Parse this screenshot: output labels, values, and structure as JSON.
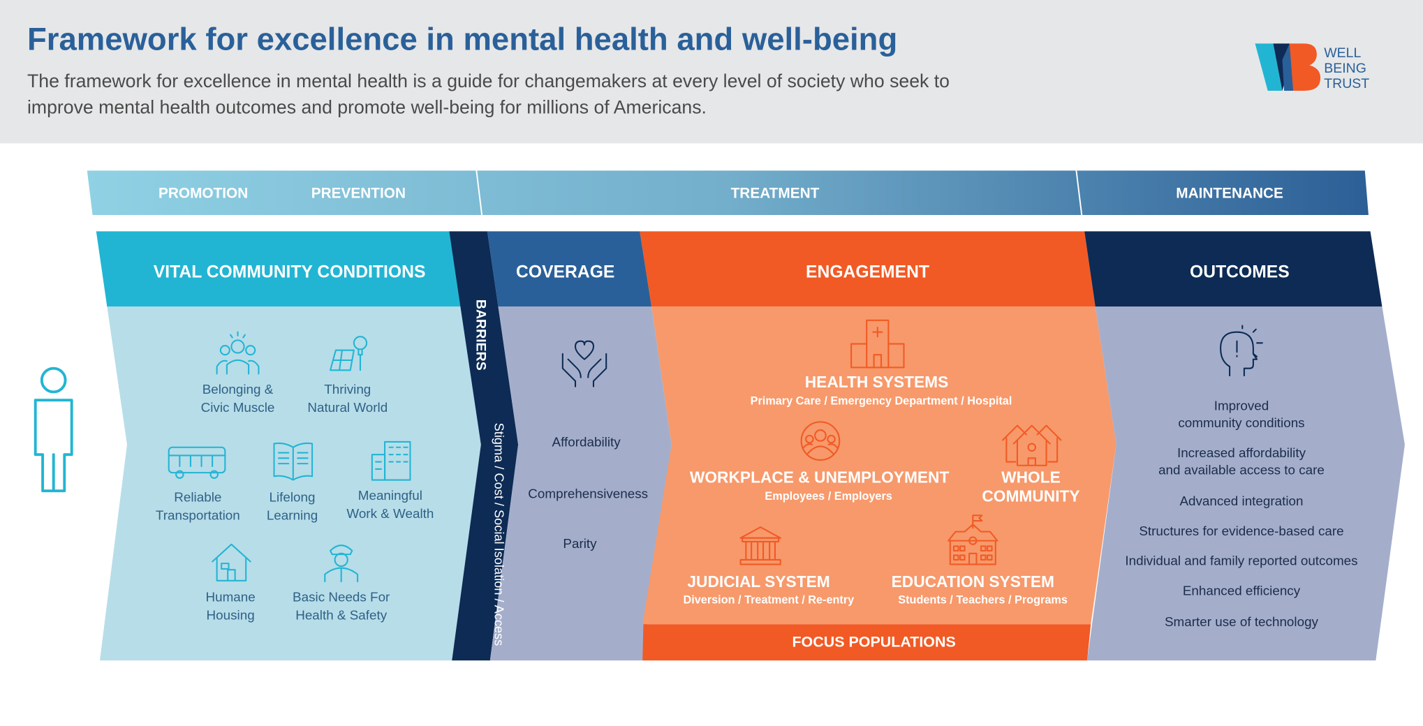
{
  "header": {
    "title": "Framework for excellence in mental health and well-being",
    "subtitle": "The framework for excellence in mental health is a guide for changemakers at every level of society who seek to improve mental health outcomes and promote well-being for millions of Americans.",
    "logo_text": [
      "WELL",
      "BEING",
      "TRUST"
    ]
  },
  "phases": [
    "PROMOTION",
    "PREVENTION",
    "TREATMENT",
    "MAINTENANCE"
  ],
  "vital": {
    "title": "VITAL COMMUNITY CONDITIONS",
    "items": [
      {
        "l1": "Belonging &",
        "l2": "Civic Muscle",
        "icon": "group-icon"
      },
      {
        "l1": "Thriving",
        "l2": "Natural World",
        "icon": "solar-bulb-icon"
      },
      {
        "l1": "Reliable",
        "l2": "Transportation",
        "icon": "bus-icon"
      },
      {
        "l1": "Lifelong",
        "l2": "Learning",
        "icon": "book-icon"
      },
      {
        "l1": "Meaningful",
        "l2": "Work & Wealth",
        "icon": "building-icon"
      },
      {
        "l1": "Humane",
        "l2": "Housing",
        "icon": "house-icon"
      },
      {
        "l1": "Basic Needs For",
        "l2": "Health & Safety",
        "icon": "officer-icon"
      }
    ]
  },
  "barriers": {
    "title": "BARRIERS",
    "text": "Stigma / Cost / Social Isolation / Access"
  },
  "coverage": {
    "title": "COVERAGE",
    "items": [
      "Affordability",
      "Comprehensiveness",
      "Parity"
    ]
  },
  "engagement": {
    "title": "ENGAGEMENT",
    "health": {
      "title": "HEALTH SYSTEMS",
      "sub": "Primary Care  /  Emergency Department  /  Hospital"
    },
    "workplace": {
      "title": "WORKPLACE & UNEMPLOYMENT",
      "sub": "Employees  /  Employers"
    },
    "whole": {
      "l1": "WHOLE",
      "l2": "COMMUNITY"
    },
    "judicial": {
      "title": "JUDICIAL SYSTEM",
      "sub": "Diversion  /  Treatment  /  Re-entry"
    },
    "education": {
      "title": "EDUCATION SYSTEM",
      "sub": "Students  /  Teachers  /  Programs"
    },
    "focus": "FOCUS POPULATIONS"
  },
  "outcomes": {
    "title": "OUTCOMES",
    "items": [
      "Improved|community conditions",
      "Increased affordability|and available access to care",
      "Advanced integration",
      "Structures for evidence-based care",
      "Individual and family reported outcomes",
      "Enhanced efficiency",
      "Smarter use of technology"
    ]
  },
  "colors": {
    "cyan": "#22b5d3",
    "light_cyan": "#b7dde9",
    "blue": "#2a6099",
    "navy": "#0d2b54",
    "orange": "#f15a24",
    "light_orange": "#f7996b",
    "slate": "#a4aecb"
  }
}
